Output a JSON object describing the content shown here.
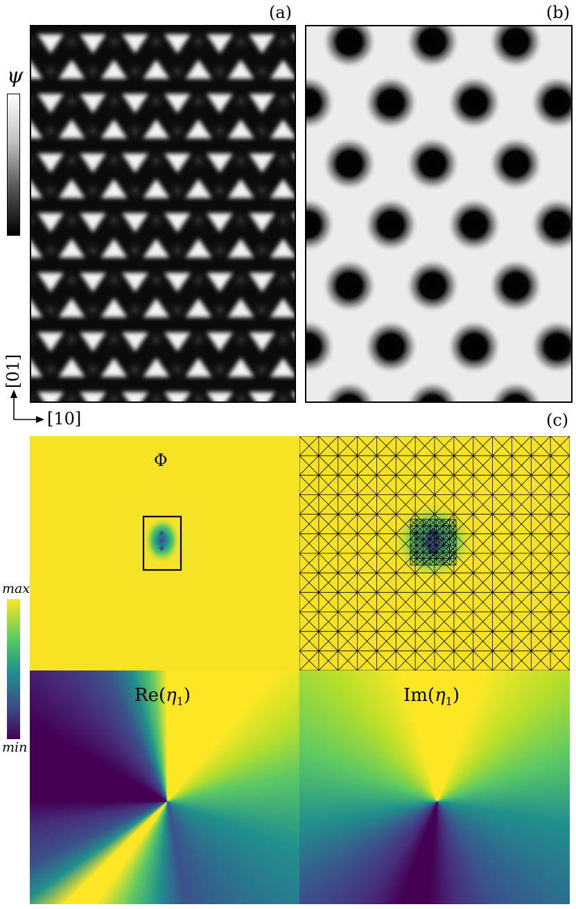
{
  "figure": {
    "labels": {
      "a": "(a)",
      "b": "(b)",
      "c": "(c)"
    },
    "psi_colorbar": {
      "symbol": "ψ",
      "gradient_colors": [
        "#ffffff",
        "#000000"
      ]
    },
    "axes_arrows": {
      "vertical": "[01]",
      "horizontal": "[10]"
    },
    "panel_c": {
      "phi_title": "Φ",
      "re_title_prefix": "Re(",
      "re_title_var": "η",
      "re_title_sub": "1",
      "re_title_suffix": ")",
      "im_title_prefix": "Im(",
      "im_title_var": "η",
      "im_title_sub": "1",
      "im_title_suffix": ")",
      "colorbar_max": "max",
      "colorbar_min": "min",
      "viridis": [
        "#440154",
        "#3b528b",
        "#21908d",
        "#5dc963",
        "#fde725"
      ]
    }
  }
}
